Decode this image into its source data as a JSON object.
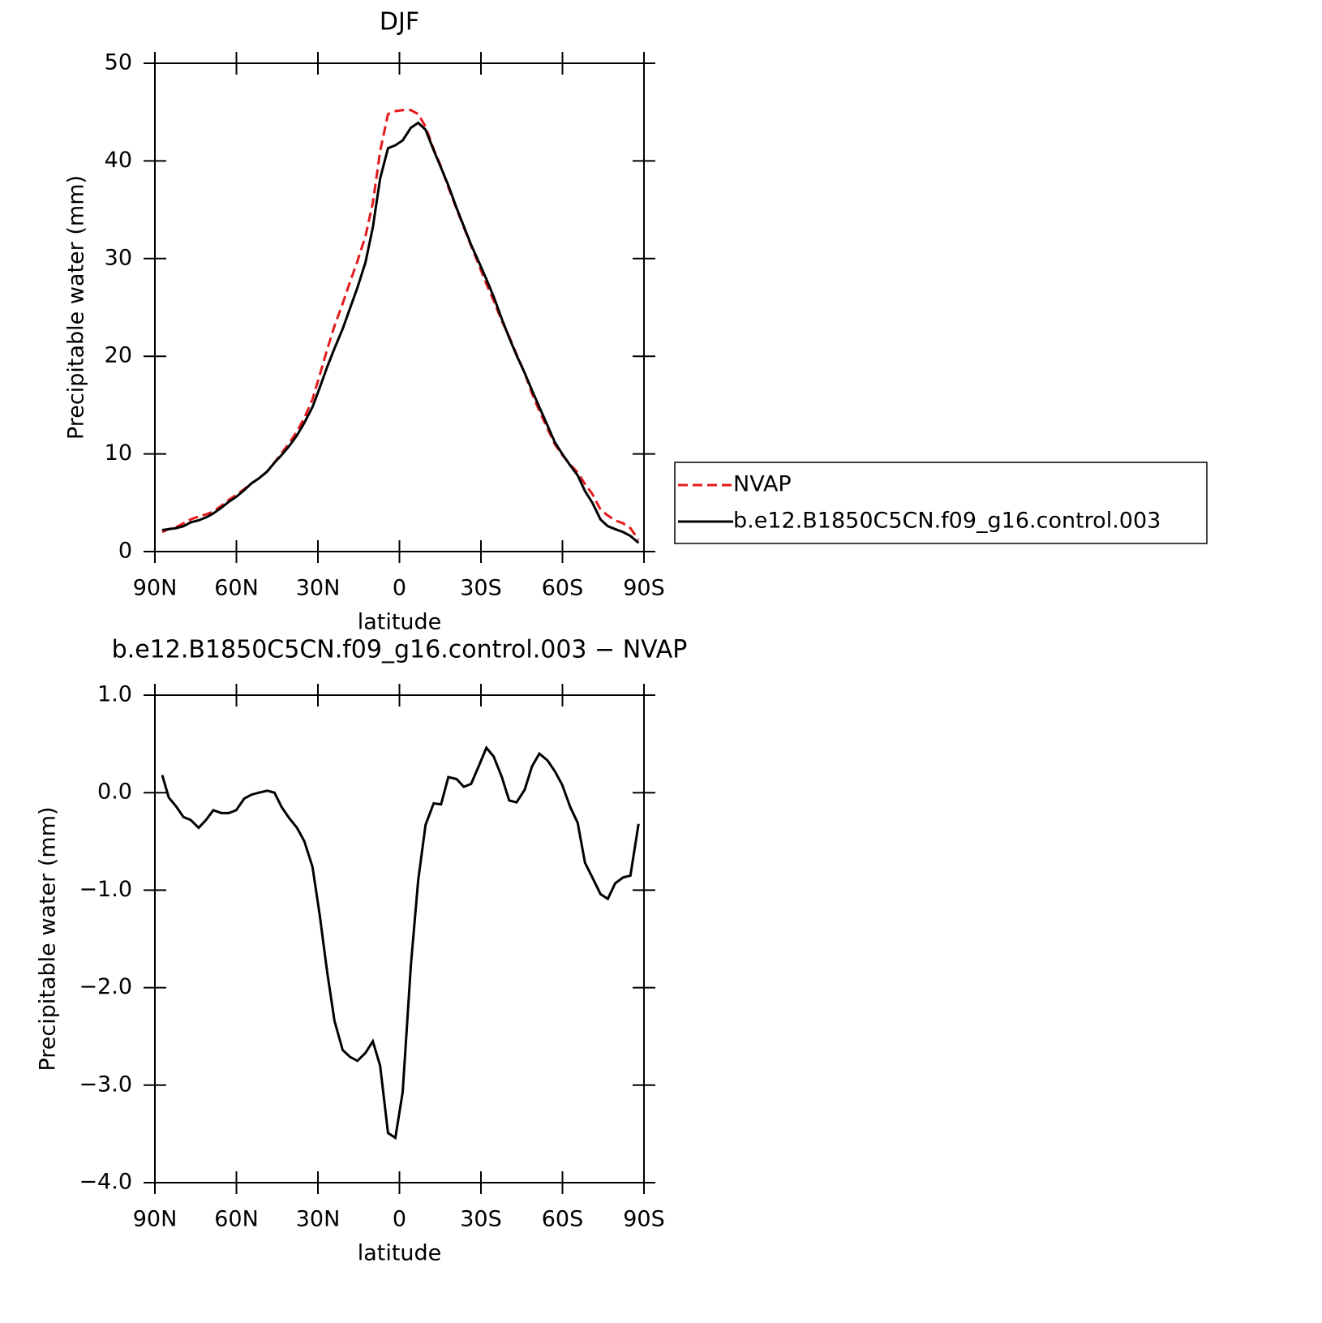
{
  "chart_data": [
    {
      "type": "line",
      "title": "DJF",
      "xlabel": "latitude",
      "ylabel": "Precipitable water (mm)",
      "x": [
        87.3,
        84.9,
        82.2,
        79.5,
        76.8,
        73.9,
        71.2,
        68.5,
        65.5,
        62.8,
        60.1,
        57.1,
        54.4,
        51.7,
        48.7,
        46.0,
        43.3,
        40.6,
        37.7,
        35.0,
        32.0,
        29.3,
        26.6,
        23.9,
        20.9,
        18.2,
        15.5,
        12.5,
        9.8,
        7.1,
        4.2,
        1.5,
        -1.2,
        -4.2,
        -6.9,
        -9.6,
        -12.6,
        -15.3,
        -18.0,
        -21.0,
        -23.7,
        -26.4,
        -29.3,
        -32.0,
        -34.7,
        -37.7,
        -40.4,
        -43.1,
        -46.1,
        -48.8,
        -51.5,
        -54.5,
        -57.2,
        -59.9,
        -62.9,
        -65.6,
        -68.3,
        -71.0,
        -74.0,
        -76.7,
        -79.4,
        -82.3,
        -85.0,
        -88.0
      ],
      "series": [
        {
          "name": "NVAP",
          "color": "#e41a1c",
          "style": "dashed",
          "values": [
            2.0,
            2.3,
            2.5,
            2.9,
            3.3,
            3.6,
            3.8,
            4.1,
            4.7,
            5.3,
            5.8,
            6.4,
            7.0,
            7.5,
            8.2,
            9.1,
            10.1,
            11.1,
            12.3,
            13.7,
            15.6,
            18.1,
            20.7,
            23.1,
            25.4,
            27.6,
            29.7,
            32.3,
            35.7,
            41.0,
            44.8,
            45.1,
            45.2,
            45.2,
            44.8,
            43.5,
            41.2,
            39.4,
            37.3,
            35.1,
            33.2,
            31.3,
            29.3,
            27.4,
            25.7,
            23.6,
            22.0,
            20.2,
            18.3,
            16.2,
            14.4,
            12.6,
            11.0,
            9.9,
            8.9,
            8.1,
            6.9,
            5.9,
            4.3,
            3.7,
            3.2,
            2.9,
            2.4,
            1.2
          ]
        },
        {
          "name": "b.e12.B1850C5CN.f09_g16.control.003",
          "color": "#000000",
          "style": "solid",
          "values": [
            2.2,
            2.3,
            2.4,
            2.6,
            3.0,
            3.2,
            3.5,
            3.9,
            4.5,
            5.1,
            5.6,
            6.3,
            7.0,
            7.5,
            8.2,
            9.1,
            9.9,
            10.8,
            11.9,
            13.2,
            14.8,
            16.8,
            18.9,
            20.8,
            22.8,
            24.9,
            27.0,
            29.6,
            33.2,
            38.2,
            41.3,
            41.6,
            42.1,
            43.4,
            43.9,
            43.2,
            41.1,
            39.3,
            37.5,
            35.2,
            33.3,
            31.4,
            29.6,
            27.9,
            26.1,
            23.8,
            21.9,
            20.1,
            18.3,
            16.5,
            14.8,
            12.9,
            11.2,
            10.0,
            8.8,
            7.8,
            6.2,
            5.0,
            3.3,
            2.6,
            2.3,
            2.0,
            1.6,
            0.9
          ]
        }
      ],
      "xlim": [
        90,
        -90
      ],
      "xticks": [
        {
          "value": 90,
          "label": "90N"
        },
        {
          "value": 60,
          "label": "60N"
        },
        {
          "value": 30,
          "label": "30N"
        },
        0,
        {
          "value": -30,
          "label": "30S"
        },
        {
          "value": -60,
          "label": "60S"
        },
        {
          "value": -90,
          "label": "90S"
        }
      ],
      "ylim": [
        0,
        50
      ],
      "yticks": [
        0,
        10,
        20,
        30,
        40,
        50
      ],
      "legend": "right"
    },
    {
      "type": "line",
      "title": "b.e12.B1850C5CN.f09_g16.control.003 − NVAP",
      "xlabel": "latitude",
      "ylabel": "Precipitable water (mm)",
      "x": [
        87.3,
        84.9,
        82.2,
        79.5,
        76.8,
        73.9,
        71.2,
        68.5,
        65.5,
        62.8,
        60.1,
        57.1,
        54.4,
        51.7,
        48.7,
        46.0,
        43.3,
        40.6,
        37.7,
        35.0,
        32.0,
        29.3,
        26.6,
        23.9,
        20.9,
        18.2,
        15.5,
        12.5,
        9.8,
        7.1,
        4.2,
        1.5,
        -1.2,
        -4.2,
        -6.9,
        -9.6,
        -12.6,
        -15.3,
        -18.0,
        -21.0,
        -23.7,
        -26.4,
        -29.3,
        -32.0,
        -34.7,
        -37.7,
        -40.4,
        -43.1,
        -46.1,
        -48.8,
        -51.5,
        -54.5,
        -57.2,
        -59.9,
        -62.9,
        -65.6,
        -68.3,
        -71.0,
        -74.0,
        -76.7,
        -79.4,
        -82.3,
        -85.0,
        -88.0
      ],
      "values": [
        0.18,
        -0.05,
        -0.14,
        -0.25,
        -0.28,
        -0.36,
        -0.28,
        -0.18,
        -0.21,
        -0.21,
        -0.18,
        -0.06,
        -0.02,
        0.0,
        0.02,
        0.0,
        -0.15,
        -0.26,
        -0.36,
        -0.5,
        -0.76,
        -1.26,
        -1.84,
        -2.34,
        -2.64,
        -2.71,
        -2.75,
        -2.67,
        -2.55,
        -2.8,
        -3.49,
        -3.54,
        -3.07,
        -1.77,
        -0.9,
        -0.33,
        -0.11,
        -0.12,
        0.16,
        0.14,
        0.06,
        0.09,
        0.28,
        0.46,
        0.37,
        0.16,
        -0.08,
        -0.1,
        0.03,
        0.27,
        0.4,
        0.33,
        0.22,
        0.08,
        -0.15,
        -0.31,
        -0.72,
        -0.87,
        -1.04,
        -1.09,
        -0.93,
        -0.87,
        -0.85,
        -0.32
      ],
      "color": "#000000",
      "xlim": [
        90,
        -90
      ],
      "xticks": [
        {
          "value": 90,
          "label": "90N"
        },
        {
          "value": 60,
          "label": "60N"
        },
        {
          "value": 30,
          "label": "30N"
        },
        0,
        {
          "value": -30,
          "label": "30S"
        },
        {
          "value": -60,
          "label": "60S"
        },
        {
          "value": -90,
          "label": "90S"
        }
      ],
      "ylim": [
        -4,
        1
      ],
      "yticks": [
        {
          "value": -4,
          "label": "−4.0"
        },
        {
          "value": -3,
          "label": "−3.0"
        },
        {
          "value": -2,
          "label": "−2.0"
        },
        {
          "value": -1,
          "label": "−1.0"
        },
        {
          "value": 0,
          "label": "0.0"
        },
        {
          "value": 1,
          "label": "1.0"
        }
      ]
    }
  ]
}
